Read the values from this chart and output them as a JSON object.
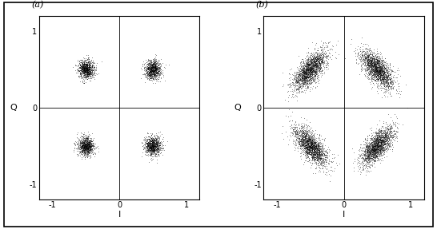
{
  "n_points_a": 1000,
  "n_points_b": 2000,
  "qpsk_centers": [
    [
      -0.5,
      0.5
    ],
    [
      0.5,
      0.5
    ],
    [
      -0.5,
      -0.5
    ],
    [
      0.5,
      -0.5
    ]
  ],
  "sigma_a": 0.06,
  "sigma_b_radial": 0.07,
  "sigma_b_tangential": 0.16,
  "xlim": [
    -1.2,
    1.2
  ],
  "ylim": [
    -1.2,
    1.2
  ],
  "xticks": [
    -1,
    0,
    1
  ],
  "yticks": [
    -1,
    0,
    1
  ],
  "xlabel": "I",
  "ylabel": "Q",
  "label_a": "(a)",
  "label_b": "(b)",
  "marker_color": "black",
  "background_color": "white",
  "fig_bg": "#f0f0f0",
  "seed_a": 42,
  "seed_b": 99
}
